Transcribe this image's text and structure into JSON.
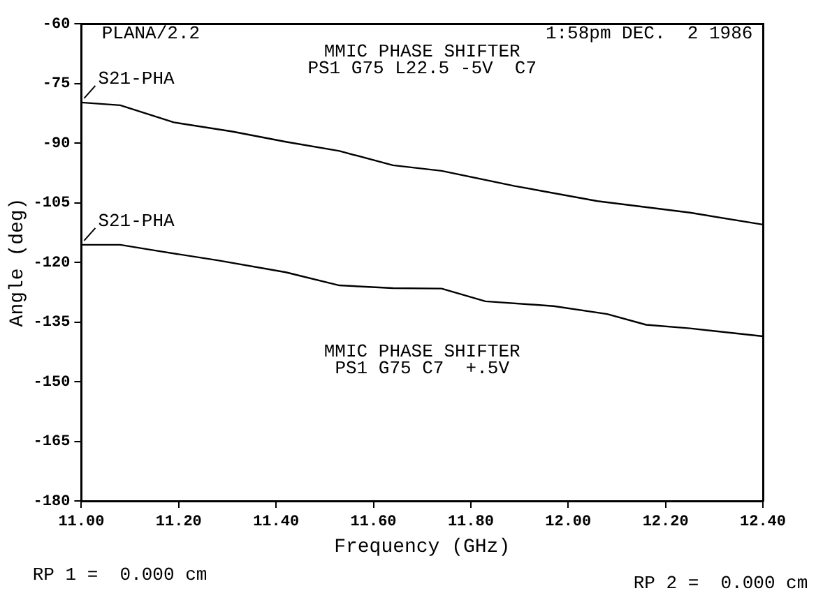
{
  "chart_data": {
    "type": "line",
    "xlabel": "Frequency (GHz)",
    "ylabel": "Angle (deg)",
    "xlim": [
      11.0,
      12.4
    ],
    "xticks": [
      {
        "value": 11.0,
        "label": "11.00"
      },
      {
        "value": 11.2,
        "label": "11.20"
      },
      {
        "value": 11.4,
        "label": "11.40"
      },
      {
        "value": 11.6,
        "label": "11.60"
      },
      {
        "value": 11.8,
        "label": "11.80"
      },
      {
        "value": 12.0,
        "label": "12.00"
      },
      {
        "value": 12.2,
        "label": "12.20"
      },
      {
        "value": 12.4,
        "label": "12.40"
      }
    ],
    "ylim": [
      -180,
      -60
    ],
    "yticks": [
      -180,
      -165,
      -150,
      -135,
      -120,
      -105,
      -90,
      -75,
      -60
    ],
    "grid": false,
    "legend": false,
    "marker": "none",
    "line_style": "solid",
    "series": [
      {
        "name": "S21-PHA",
        "color": "#000000",
        "x": [
          11.0,
          11.08,
          11.19,
          11.31,
          11.42,
          11.53,
          11.64,
          11.74,
          11.89,
          12.06,
          12.25,
          12.4
        ],
        "values": [
          -79.8,
          -80.5,
          -84.8,
          -87.1,
          -89.7,
          -92,
          -95.6,
          -97,
          -100.8,
          -104.6,
          -107.5,
          -110.5
        ]
      },
      {
        "name": "S21-PHA",
        "color": "#000000",
        "x": [
          11.0,
          11.08,
          11.15,
          11.28,
          11.42,
          11.53,
          11.64,
          11.74,
          11.83,
          11.97,
          12.08,
          12.16,
          12.25,
          12.4
        ],
        "values": [
          -115.6,
          -115.6,
          -117,
          -119.5,
          -122.5,
          -125.8,
          -126.5,
          -126.6,
          -129.8,
          -131,
          -133,
          -135.7,
          -136.6,
          -138.6
        ]
      }
    ],
    "annotations": [
      "PLANA/2.2",
      "1:58pm DEC.  2 1986",
      "MMIC PHASE SHIFTER",
      "PS1 G75 L22.5 -5V  C7",
      "MMIC PHASE SHIFTER",
      "PS1 G75 C7  +.5V",
      "RP 1 =  0.000 cm",
      "RP 2 =  0.000 cm"
    ]
  }
}
